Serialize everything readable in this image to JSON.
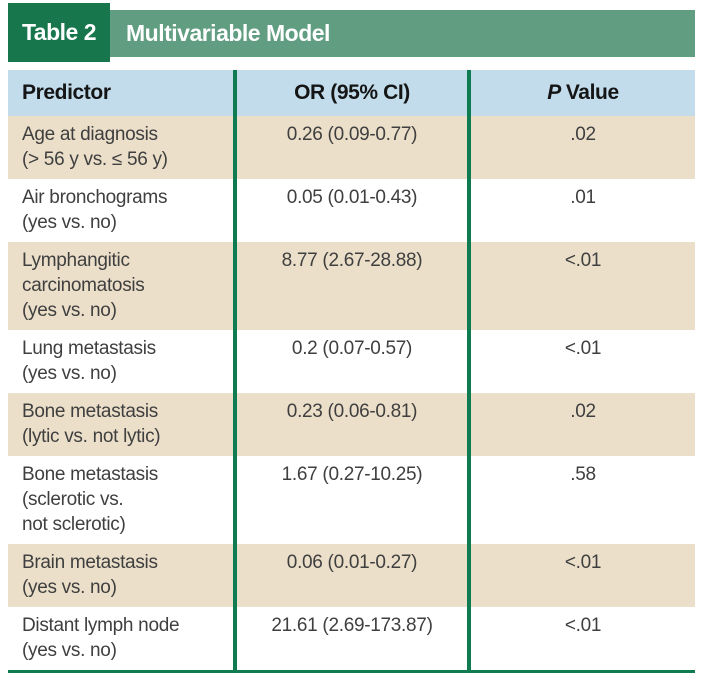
{
  "title_bar": {
    "tag": "Table 2",
    "title": "Multivariable Model"
  },
  "colors": {
    "tag_green": "#17764c",
    "bar_green": "#619e81",
    "divider_green": "#0e7b51",
    "header_blue": "#c2dcec",
    "row_tan": "#ebdfca",
    "row_white": "#ffffff",
    "body_text": "#3f3f3f"
  },
  "table": {
    "header": {
      "predictor": "Predictor",
      "or": "OR (95% CI)",
      "p_italic": "P",
      "p_rest": "Value"
    },
    "rows": [
      {
        "predictor": "Age at diagnosis\n(> 56 y vs. ≤ 56 y)",
        "or": "0.26 (0.09-0.77)",
        "p": ".02"
      },
      {
        "predictor": "Air bronchograms\n(yes vs. no)",
        "or": "0.05 (0.01-0.43)",
        "p": ".01"
      },
      {
        "predictor": "Lymphangitic\ncarcinomatosis\n(yes vs. no)",
        "or": "8.77 (2.67-28.88)",
        "p": "<.01"
      },
      {
        "predictor": "Lung metastasis\n(yes vs. no)",
        "or": "0.2 (0.07-0.57)",
        "p": "<.01"
      },
      {
        "predictor": "Bone metastasis\n(lytic vs. not lytic)",
        "or": "0.23 (0.06-0.81)",
        "p": ".02"
      },
      {
        "predictor": "Bone metastasis\n(sclerotic vs.\nnot sclerotic)",
        "or": "1.67 (0.27-10.25)",
        "p": ".58"
      },
      {
        "predictor": "Brain metastasis\n(yes vs. no)",
        "or": "0.06 (0.01-0.27)",
        "p": "<.01"
      },
      {
        "predictor": "Distant lymph node\n(yes vs. no)",
        "or": "21.61 (2.69-173.87)",
        "p": "<.01"
      }
    ]
  }
}
